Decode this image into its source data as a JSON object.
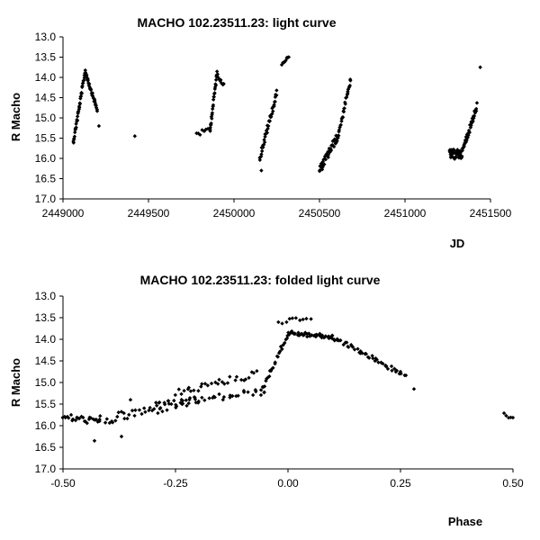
{
  "chart_data": [
    {
      "type": "scatter",
      "title": "MACHO 102.23511.23: light curve",
      "xlabel": "JD",
      "ylabel": "R Macho",
      "xlim": [
        2449000,
        2451500
      ],
      "ylim": [
        13.0,
        17.0
      ],
      "y_inverted": true,
      "xticks": [
        "2449000",
        "2449500",
        "2450000",
        "2450500",
        "2451000",
        "2451500"
      ],
      "yticks": [
        "13.0",
        "13.5",
        "14.0",
        "14.5",
        "15.0",
        "15.5",
        "16.0",
        "16.5",
        "17.0"
      ],
      "grid": false,
      "segments": [
        {
          "x0": 2449060,
          "x1": 2449130,
          "y0": 15.6,
          "y1": 13.85,
          "n": 40,
          "scatter": 0.06
        },
        {
          "x0": 2449130,
          "x1": 2449200,
          "y0": 13.85,
          "y1": 14.8,
          "n": 35,
          "scatter": 0.05
        },
        {
          "x0": 2449780,
          "x1": 2449860,
          "y0": 15.4,
          "y1": 15.3,
          "n": 8,
          "scatter": 0.06
        },
        {
          "x0": 2449860,
          "x1": 2449900,
          "y0": 15.3,
          "y1": 13.9,
          "n": 25,
          "scatter": 0.07
        },
        {
          "x0": 2449900,
          "x1": 2449940,
          "y0": 13.9,
          "y1": 14.2,
          "n": 10,
          "scatter": 0.05
        },
        {
          "x0": 2450150,
          "x1": 2450250,
          "y0": 16.0,
          "y1": 14.4,
          "n": 40,
          "scatter": 0.08
        },
        {
          "x0": 2450280,
          "x1": 2450320,
          "y0": 13.65,
          "y1": 13.5,
          "n": 8,
          "scatter": 0.04
        },
        {
          "x0": 2450500,
          "x1": 2450600,
          "y0": 16.3,
          "y1": 15.5,
          "n": 40,
          "scatter": 0.1
        },
        {
          "x0": 2450600,
          "x1": 2450680,
          "y0": 15.6,
          "y1": 14.1,
          "n": 30,
          "scatter": 0.06
        },
        {
          "x0": 2451260,
          "x1": 2451330,
          "y0": 15.9,
          "y1": 15.9,
          "n": 40,
          "scatter": 0.12
        },
        {
          "x0": 2451330,
          "x1": 2451420,
          "y0": 15.9,
          "y1": 14.7,
          "n": 40,
          "scatter": 0.08
        }
      ],
      "points": [
        {
          "x": 2449210,
          "y": 15.2
        },
        {
          "x": 2449420,
          "y": 15.45
        },
        {
          "x": 2450160,
          "y": 16.3
        },
        {
          "x": 2450680,
          "y": 14.05
        },
        {
          "x": 2451440,
          "y": 13.75
        }
      ]
    },
    {
      "type": "scatter",
      "title": "MACHO 102.23511.23: folded light curve",
      "xlabel": "Phase",
      "ylabel": "R Macho",
      "xlim": [
        -0.5,
        0.5
      ],
      "ylim": [
        13.0,
        17.0
      ],
      "y_inverted": true,
      "xticks": [
        "-0.50",
        "-0.25",
        "0.00",
        "0.25",
        "0.50"
      ],
      "yticks": [
        "13.0",
        "13.5",
        "14.0",
        "14.5",
        "15.0",
        "15.5",
        "16.0",
        "16.5",
        "17.0"
      ],
      "grid": false,
      "segments": [
        {
          "x0": -0.5,
          "x1": -0.42,
          "y0": 15.8,
          "y1": 15.9,
          "n": 25,
          "scatter": 0.08
        },
        {
          "x0": -0.42,
          "x1": -0.2,
          "y0": 15.9,
          "y1": 15.4,
          "n": 45,
          "scatter": 0.12
        },
        {
          "x0": -0.3,
          "x1": -0.05,
          "y0": 15.55,
          "y1": 15.2,
          "n": 40,
          "scatter": 0.08
        },
        {
          "x0": -0.25,
          "x1": -0.07,
          "y0": 15.25,
          "y1": 14.8,
          "n": 30,
          "scatter": 0.08
        },
        {
          "x0": -0.06,
          "x1": 0.0,
          "y0": 15.2,
          "y1": 13.9,
          "n": 25,
          "scatter": 0.06
        },
        {
          "x0": 0.0,
          "x1": 0.1,
          "y0": 13.85,
          "y1": 13.95,
          "n": 40,
          "scatter": 0.05
        },
        {
          "x0": 0.1,
          "x1": 0.26,
          "y0": 13.95,
          "y1": 14.85,
          "n": 50,
          "scatter": 0.05
        },
        {
          "x0": -0.02,
          "x1": 0.05,
          "y0": 13.6,
          "y1": 13.5,
          "n": 10,
          "scatter": 0.05
        },
        {
          "x0": 0.48,
          "x1": 0.5,
          "y0": 15.75,
          "y1": 15.85,
          "n": 5,
          "scatter": 0.04
        }
      ],
      "points": [
        {
          "x": -0.35,
          "y": 15.4
        },
        {
          "x": -0.43,
          "y": 16.35
        },
        {
          "x": -0.37,
          "y": 16.25
        },
        {
          "x": 0.28,
          "y": 15.15
        }
      ]
    }
  ]
}
